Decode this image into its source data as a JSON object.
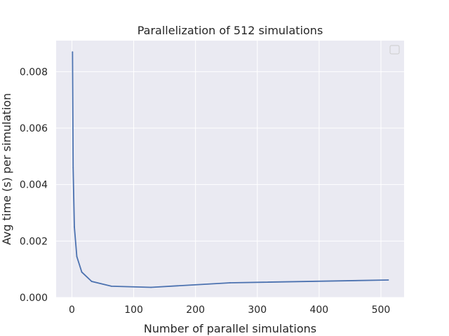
{
  "chart_data": {
    "type": "line",
    "title": "Parallelization of 512 simulations",
    "xlabel": "Number of parallel simulations",
    "ylabel": "Avg time (s) per simulation",
    "xlim": [
      -25.5,
      537.5
    ],
    "ylim": [
      0,
      0.0091
    ],
    "xticks": [
      0,
      100,
      200,
      300,
      400,
      500
    ],
    "yticks": [
      0.0,
      0.002,
      0.004,
      0.006,
      0.008
    ],
    "xtick_labels": [
      "0",
      "100",
      "200",
      "300",
      "400",
      "500"
    ],
    "ytick_labels": [
      "0.000",
      "0.002",
      "0.004",
      "0.006",
      "0.008"
    ],
    "grid": true,
    "legend": "top-right, empty",
    "series": [
      {
        "color": "#4c72b0",
        "x": [
          1,
          2,
          4,
          8,
          16,
          32,
          64,
          128,
          256,
          512
        ],
        "y": [
          0.0087,
          0.0046,
          0.0025,
          0.00145,
          0.0009,
          0.00057,
          0.0004,
          0.00036,
          0.00052,
          0.00062
        ]
      }
    ]
  },
  "colors": {
    "plot_background": "#eaeaf2",
    "grid": "#ffffff",
    "line": "#4c72b0",
    "text": "#262626"
  }
}
